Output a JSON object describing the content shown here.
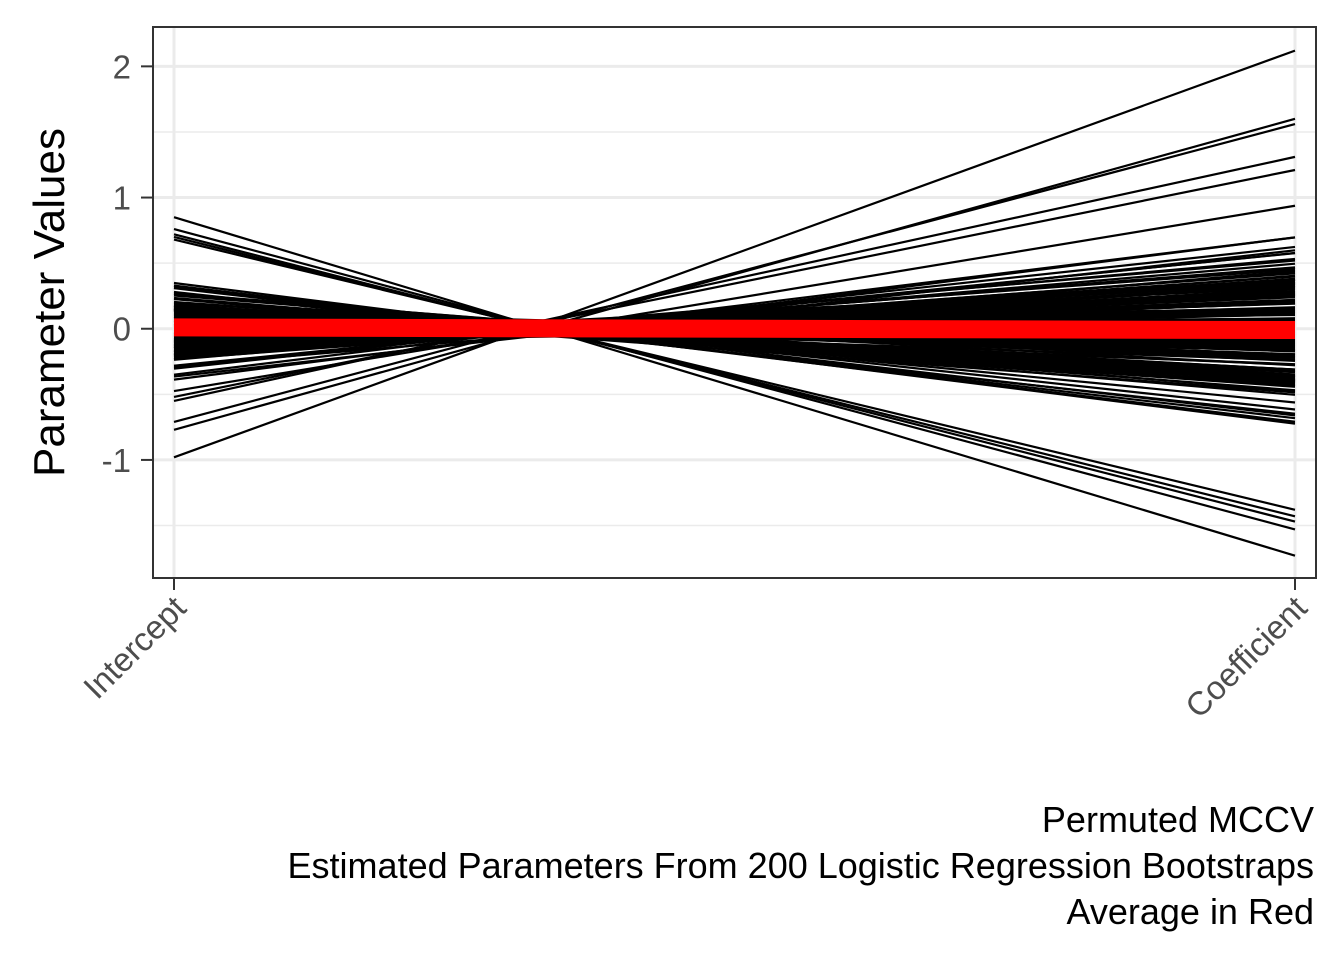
{
  "chart_data": {
    "type": "line",
    "title": "",
    "xlabel": "",
    "ylabel": "Parameter Values",
    "categories": [
      "Intercept",
      "Coefficient"
    ],
    "ylim": [
      -1.9,
      2.3
    ],
    "y_ticks": [
      2,
      1,
      0,
      -1
    ],
    "y_tick_labels": [
      "2",
      "1",
      "0",
      "-1"
    ],
    "grid": true,
    "legend": "none",
    "caption_lines": [
      "Permuted MCCV",
      "Estimated Parameters From 200 Logistic Regression Bootstraps",
      "Average in Red"
    ],
    "series_count": 200,
    "series_color": "#000000",
    "average": {
      "name": "Average",
      "values": [
        0.01,
        -0.01
      ],
      "color": "#ff0000"
    },
    "series_extremes": [
      {
        "values": [
          -0.98,
          2.12
        ]
      },
      {
        "values": [
          -0.77,
          1.6
        ]
      },
      {
        "values": [
          -0.71,
          1.56
        ]
      },
      {
        "values": [
          -0.55,
          1.31
        ]
      },
      {
        "values": [
          -0.52,
          1.21
        ]
      },
      {
        "values": [
          0.85,
          -1.73
        ]
      },
      {
        "values": [
          0.76,
          -1.53
        ]
      },
      {
        "values": [
          0.72,
          -1.47
        ]
      },
      {
        "values": [
          0.7,
          -1.43
        ]
      },
      {
        "values": [
          0.68,
          -1.38
        ]
      }
    ]
  }
}
